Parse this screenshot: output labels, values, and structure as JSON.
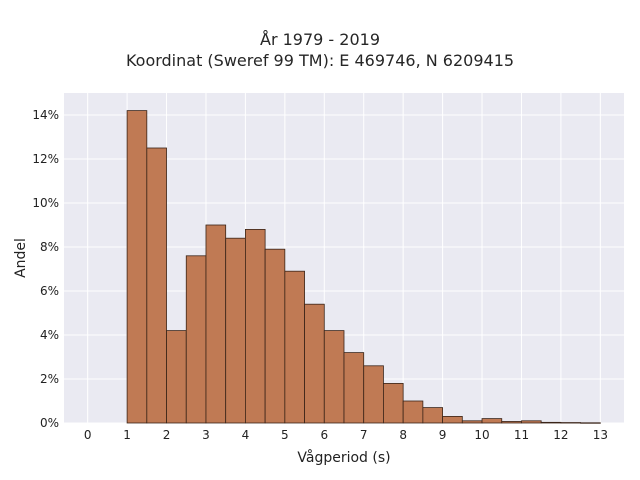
{
  "chart_data": {
    "type": "bar",
    "title_line1": "År 1979 - 2019",
    "title_line2": "Koordinat (Sweref 99 TM): E 469746, N 6209415",
    "xlabel": "Vågperiod (s)",
    "ylabel": "Andel",
    "xlim": [
      -0.6,
      13.6
    ],
    "ylim": [
      0,
      0.15
    ],
    "x_ticks": [
      0,
      1,
      2,
      3,
      4,
      5,
      6,
      7,
      8,
      9,
      10,
      11,
      12,
      13
    ],
    "y_ticks": [
      0,
      0.02,
      0.04,
      0.06,
      0.08,
      0.1,
      0.12,
      0.14
    ],
    "y_tick_labels": [
      "0%",
      "2%",
      "4%",
      "6%",
      "8%",
      "10%",
      "12%",
      "14%"
    ],
    "bin_width": 0.5,
    "bin_starts": [
      1.0,
      1.5,
      2.0,
      2.5,
      3.0,
      3.5,
      4.0,
      4.5,
      5.0,
      5.5,
      6.0,
      6.5,
      7.0,
      7.5,
      8.0,
      8.5,
      9.0,
      9.5,
      10.0,
      10.5,
      11.0,
      11.5,
      12.0,
      12.5
    ],
    "values": [
      0.142,
      0.125,
      0.042,
      0.076,
      0.09,
      0.084,
      0.088,
      0.079,
      0.069,
      0.054,
      0.042,
      0.032,
      0.026,
      0.018,
      0.01,
      0.007,
      0.003,
      0.001,
      0.002,
      0.0007,
      0.001,
      0.0003,
      0.0002,
      0.0001
    ],
    "grid": true,
    "colors": {
      "bar_fill": "#c07a54",
      "bar_edge": "#3a2418",
      "plot_bg": "#eaeaf2",
      "grid": "#ffffff"
    }
  }
}
